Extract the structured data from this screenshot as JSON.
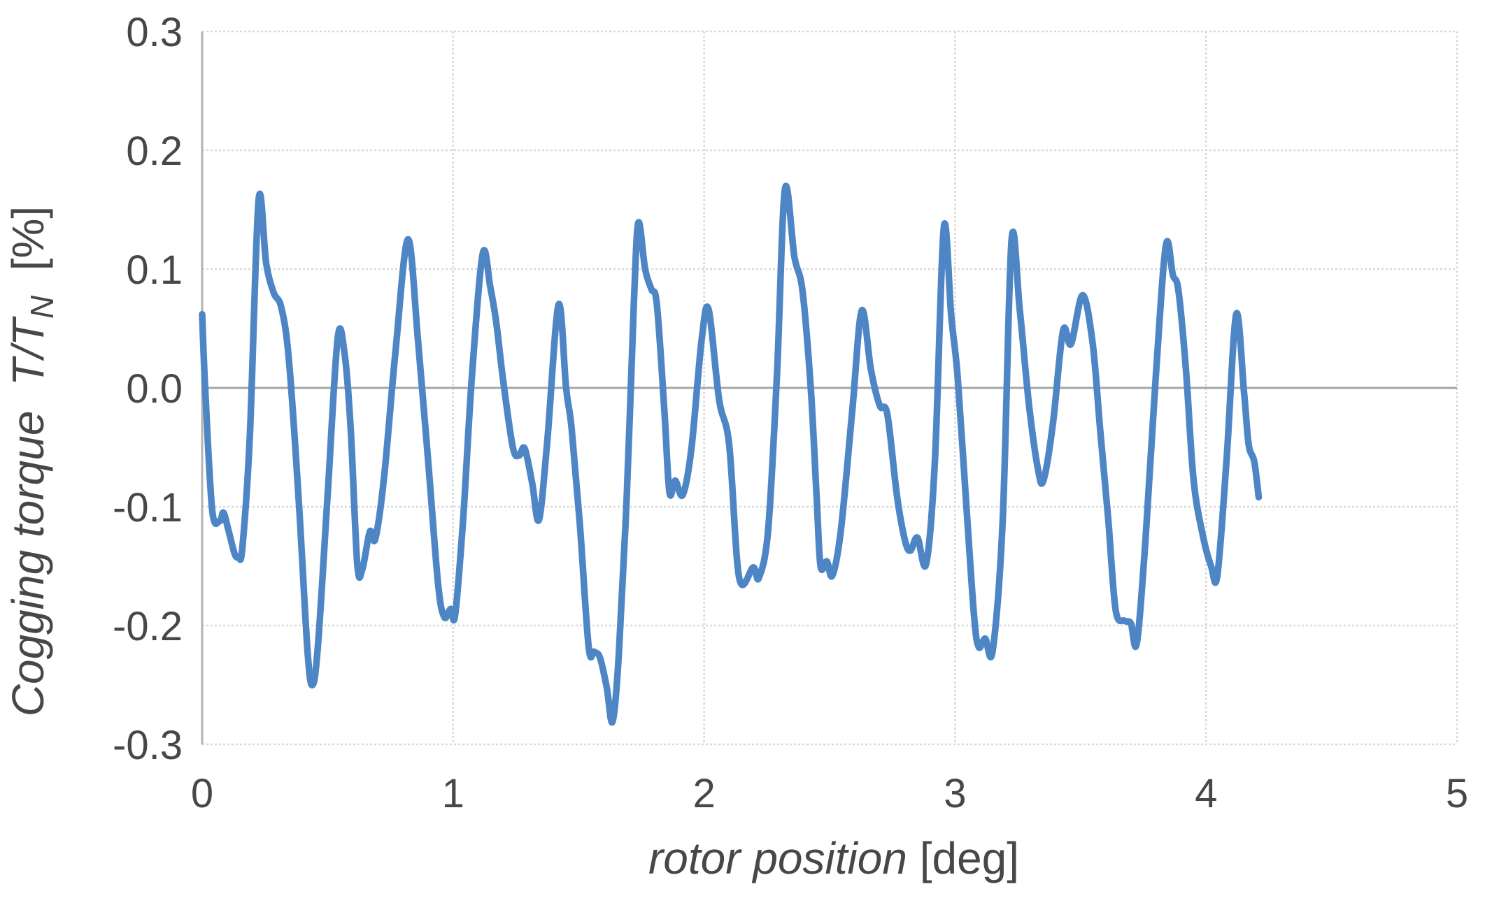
{
  "chart_data": {
    "type": "line",
    "title": "",
    "xlabel_main": "rotor position",
    "xlabel_unit": " [deg]",
    "ylabel_main": "Cogging torque  ",
    "ylabel_symbol": "T/T",
    "ylabel_sub": "N",
    "ylabel_unit": "  [%]",
    "xlim": [
      0,
      5
    ],
    "ylim": [
      -0.3,
      0.3
    ],
    "xticks": {
      "values": [
        0,
        1,
        2,
        3,
        4,
        5
      ],
      "labels": [
        "0",
        "1",
        "2",
        "3",
        "4",
        "5"
      ]
    },
    "yticks": {
      "values": [
        0.3,
        0.2,
        0.1,
        0.0,
        -0.1,
        -0.2,
        -0.3
      ],
      "labels": [
        "0.3",
        "0.2",
        "0.1",
        "0.0",
        "-0.1",
        "-0.2",
        "-0.3"
      ]
    },
    "grid": true,
    "legend_position": "none",
    "colors": {
      "line": "#4e86c5",
      "gridline": "#d9d9d9",
      "zero_axis": "#a6a6a6",
      "left_border": "#b3b3b3",
      "tick_text": "#474747"
    },
    "series": [
      {
        "name": "cogging torque",
        "color": "#4e86c5",
        "points": [
          [
            0.0,
            0.062
          ],
          [
            0.012,
            0.0
          ],
          [
            0.04,
            -0.103
          ],
          [
            0.07,
            -0.112
          ],
          [
            0.085,
            -0.105
          ],
          [
            0.105,
            -0.12
          ],
          [
            0.13,
            -0.14
          ],
          [
            0.145,
            -0.142
          ],
          [
            0.16,
            -0.135
          ],
          [
            0.19,
            -0.04
          ],
          [
            0.225,
            0.158
          ],
          [
            0.255,
            0.105
          ],
          [
            0.285,
            0.08
          ],
          [
            0.315,
            0.068
          ],
          [
            0.345,
            0.025
          ],
          [
            0.385,
            -0.095
          ],
          [
            0.42,
            -0.222
          ],
          [
            0.44,
            -0.25
          ],
          [
            0.462,
            -0.215
          ],
          [
            0.5,
            -0.09
          ],
          [
            0.54,
            0.042
          ],
          [
            0.568,
            0.028
          ],
          [
            0.592,
            -0.035
          ],
          [
            0.618,
            -0.148
          ],
          [
            0.638,
            -0.153
          ],
          [
            0.668,
            -0.121
          ],
          [
            0.69,
            -0.127
          ],
          [
            0.725,
            -0.075
          ],
          [
            0.77,
            0.03
          ],
          [
            0.82,
            0.125
          ],
          [
            0.86,
            0.04
          ],
          [
            0.9,
            -0.06
          ],
          [
            0.94,
            -0.165
          ],
          [
            0.965,
            -0.193
          ],
          [
            0.99,
            -0.186
          ],
          [
            1.008,
            -0.191
          ],
          [
            1.04,
            -0.11
          ],
          [
            1.075,
            0.01
          ],
          [
            1.118,
            0.113
          ],
          [
            1.148,
            0.085
          ],
          [
            1.172,
            0.055
          ],
          [
            1.2,
            0.005
          ],
          [
            1.238,
            -0.05
          ],
          [
            1.262,
            -0.057
          ],
          [
            1.285,
            -0.051
          ],
          [
            1.315,
            -0.08
          ],
          [
            1.342,
            -0.111
          ],
          [
            1.375,
            -0.045
          ],
          [
            1.42,
            0.07
          ],
          [
            1.45,
            0.0
          ],
          [
            1.472,
            -0.034
          ],
          [
            1.505,
            -0.115
          ],
          [
            1.54,
            -0.218
          ],
          [
            1.562,
            -0.222
          ],
          [
            1.585,
            -0.227
          ],
          [
            1.612,
            -0.252
          ],
          [
            1.635,
            -0.281
          ],
          [
            1.66,
            -0.225
          ],
          [
            1.692,
            -0.09
          ],
          [
            1.72,
            0.07
          ],
          [
            1.738,
            0.139
          ],
          [
            1.765,
            0.1
          ],
          [
            1.79,
            0.083
          ],
          [
            1.812,
            0.07
          ],
          [
            1.842,
            -0.02
          ],
          [
            1.862,
            -0.088
          ],
          [
            1.885,
            -0.078
          ],
          [
            1.915,
            -0.09
          ],
          [
            1.95,
            -0.05
          ],
          [
            1.99,
            0.04
          ],
          [
            2.018,
            0.066
          ],
          [
            2.06,
            -0.01
          ],
          [
            2.1,
            -0.048
          ],
          [
            2.14,
            -0.16
          ],
          [
            2.196,
            -0.151
          ],
          [
            2.218,
            -0.16
          ],
          [
            2.255,
            -0.12
          ],
          [
            2.29,
            0.01
          ],
          [
            2.322,
            0.167
          ],
          [
            2.36,
            0.11
          ],
          [
            2.392,
            0.082
          ],
          [
            2.425,
            0.0
          ],
          [
            2.448,
            -0.09
          ],
          [
            2.464,
            -0.15
          ],
          [
            2.489,
            -0.146
          ],
          [
            2.511,
            -0.158
          ],
          [
            2.545,
            -0.12
          ],
          [
            2.59,
            -0.02
          ],
          [
            2.628,
            0.065
          ],
          [
            2.665,
            0.015
          ],
          [
            2.7,
            -0.015
          ],
          [
            2.73,
            -0.022
          ],
          [
            2.768,
            -0.09
          ],
          [
            2.8,
            -0.128
          ],
          [
            2.822,
            -0.137
          ],
          [
            2.85,
            -0.126
          ],
          [
            2.885,
            -0.148
          ],
          [
            2.92,
            -0.06
          ],
          [
            2.955,
            0.135
          ],
          [
            2.985,
            0.06
          ],
          [
            3.01,
            0.01
          ],
          [
            3.042,
            -0.09
          ],
          [
            3.075,
            -0.19
          ],
          [
            3.094,
            -0.218
          ],
          [
            3.12,
            -0.211
          ],
          [
            3.15,
            -0.221
          ],
          [
            3.19,
            -0.11
          ],
          [
            3.225,
            0.124
          ],
          [
            3.258,
            0.065
          ],
          [
            3.295,
            -0.015
          ],
          [
            3.33,
            -0.068
          ],
          [
            3.352,
            -0.078
          ],
          [
            3.39,
            -0.03
          ],
          [
            3.43,
            0.048
          ],
          [
            3.462,
            0.037
          ],
          [
            3.508,
            0.078
          ],
          [
            3.548,
            0.038
          ],
          [
            3.578,
            -0.035
          ],
          [
            3.61,
            -0.11
          ],
          [
            3.64,
            -0.187
          ],
          [
            3.675,
            -0.196
          ],
          [
            3.7,
            -0.198
          ],
          [
            3.724,
            -0.215
          ],
          [
            3.758,
            -0.13
          ],
          [
            3.8,
            0.01
          ],
          [
            3.84,
            0.12
          ],
          [
            3.868,
            0.095
          ],
          [
            3.89,
            0.082
          ],
          [
            3.92,
            0.015
          ],
          [
            3.95,
            -0.077
          ],
          [
            3.988,
            -0.125
          ],
          [
            4.02,
            -0.15
          ],
          [
            4.045,
            -0.158
          ],
          [
            4.082,
            -0.06
          ],
          [
            4.12,
            0.062
          ],
          [
            4.152,
            -0.005
          ],
          [
            4.17,
            -0.048
          ],
          [
            4.192,
            -0.062
          ],
          [
            4.21,
            -0.092
          ]
        ]
      }
    ]
  }
}
